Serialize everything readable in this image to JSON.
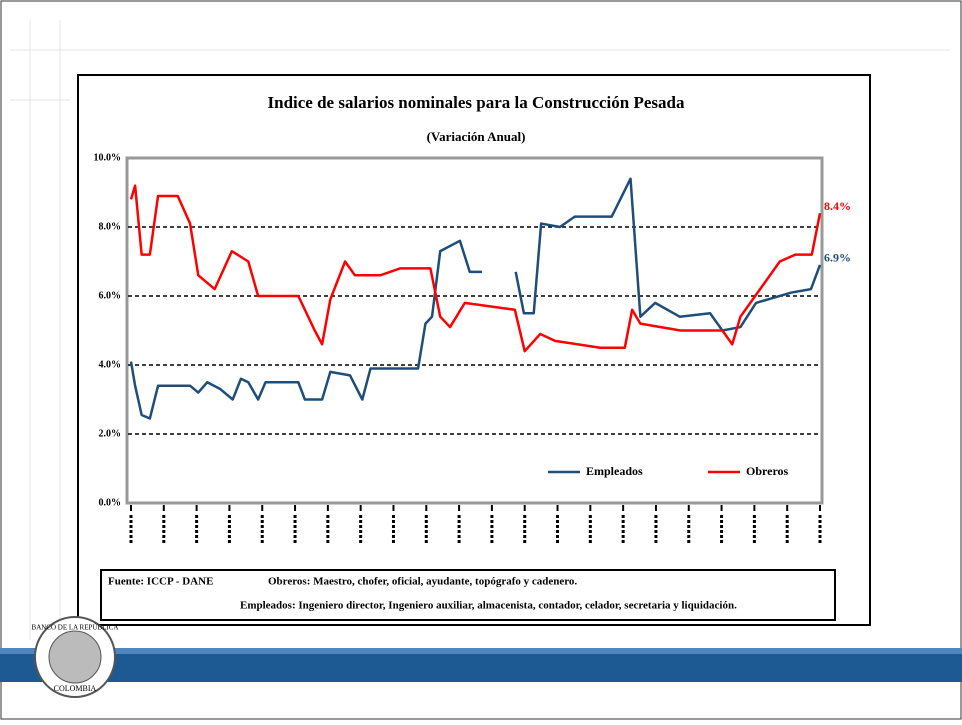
{
  "chart_data": {
    "type": "line",
    "title": "Indice de salarios nominales para la Construcción Pesada",
    "subtitle": "(Variación Anual)",
    "xlim": [
      0,
      84
    ],
    "ylim": [
      0,
      10
    ],
    "yticks": [
      {
        "value": 0,
        "label": "0.0%"
      },
      {
        "value": 2,
        "label": "2.0%"
      },
      {
        "value": 4,
        "label": "4.0%"
      },
      {
        "value": 6,
        "label": "6.0%"
      },
      {
        "value": 8,
        "label": "8.0%"
      },
      {
        "value": 10,
        "label": "10.0%"
      }
    ],
    "grid": true,
    "legend": "lower right",
    "series": [
      {
        "name": "Empleados",
        "color": "#1f4e79",
        "x": [
          0,
          0.5,
          1.3,
          2.3,
          3.3,
          7.2,
          8.2,
          9.3,
          10.9,
          12.4,
          13.4,
          14.3,
          15.5,
          16.4,
          20.4,
          21.2,
          23.3,
          24.3,
          26.7,
          28.2,
          29.2,
          35.0,
          35.9,
          36.7,
          37.7,
          40.1,
          41.3,
          42.8,
          44.8,
          46.9,
          47.9,
          49.1,
          50.0,
          52.3,
          54.1,
          58.6,
          60.9,
          62.1,
          63.9,
          66.9,
          70.6,
          72.1,
          74.3,
          76.2,
          80.5,
          82.9,
          84.0
        ],
        "values": [
          4.1,
          3.4,
          2.55,
          2.45,
          3.4,
          3.4,
          3.2,
          3.5,
          3.3,
          3.0,
          3.6,
          3.5,
          3.0,
          3.5,
          3.5,
          3.0,
          3.0,
          3.8,
          3.7,
          3.0,
          3.9,
          3.9,
          5.2,
          5.4,
          7.3,
          7.6,
          6.7,
          6.7,
          null,
          6.7,
          5.5,
          5.5,
          8.1,
          8.0,
          8.3,
          8.3,
          9.4,
          5.4,
          5.8,
          5.4,
          5.5,
          5.0,
          5.1,
          5.8,
          6.1,
          6.2,
          6.9
        ],
        "end_label": "6.9%"
      },
      {
        "name": "Obreros",
        "color": "#ff0000",
        "x": [
          0,
          0.5,
          1.3,
          2.3,
          3.3,
          5.7,
          7.2,
          8.2,
          10.2,
          12.3,
          14.3,
          15.5,
          20.4,
          22.4,
          23.3,
          24.3,
          26.1,
          27.3,
          30.4,
          32.8,
          36.5,
          37.7,
          38.9,
          40.7,
          46.8,
          48.0,
          49.9,
          51.7,
          57.2,
          60.2,
          61.1,
          62.1,
          67.0,
          72.1,
          73.3,
          74.3,
          76.7,
          79.1,
          81.0,
          83.0,
          84.0
        ],
        "values": [
          8.8,
          9.2,
          7.2,
          7.2,
          8.9,
          8.9,
          8.1,
          6.6,
          6.2,
          7.3,
          7.0,
          6.0,
          6.0,
          5.0,
          4.6,
          5.9,
          7.0,
          6.6,
          6.6,
          6.8,
          6.8,
          5.4,
          5.1,
          5.8,
          5.6,
          4.4,
          4.9,
          4.7,
          4.5,
          4.5,
          5.6,
          5.2,
          5.0,
          5.0,
          4.6,
          5.4,
          6.2,
          7.0,
          7.2,
          7.2,
          8.4
        ],
        "end_label": "8.4%"
      }
    ],
    "source": "Fuente: ICCP - DANE",
    "notes": [
      "Obreros:  Maestro, chofer, oficial, ayudante, topógrafo y cadenero.",
      "Empleados: Ingeniero director, Ingeniero auxiliar, almacenista, contador, celador, secretaria y liquidación."
    ],
    "logo": [
      "BANCO DE LA REPÚBLICA",
      "COLOMBIA"
    ]
  }
}
